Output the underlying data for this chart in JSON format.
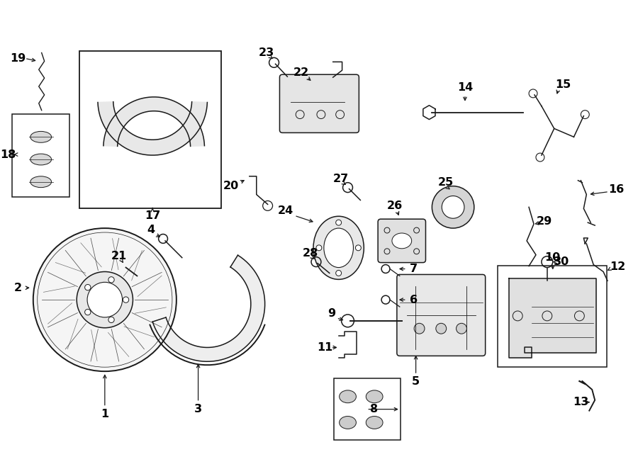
{
  "bg_color": "#ffffff",
  "line_color": "#1a1a1a",
  "text_color": "#000000",
  "fig_width": 9.0,
  "fig_height": 6.62,
  "dpi": 100
}
